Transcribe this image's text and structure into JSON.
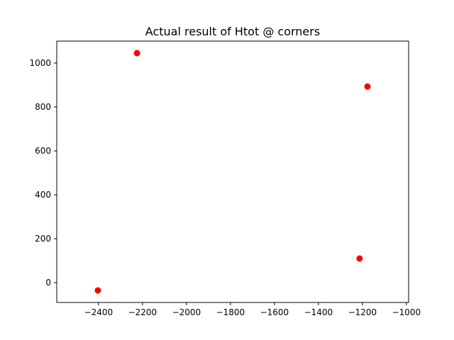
{
  "chart_data": {
    "type": "scatter",
    "title": "Actual result of Htot @ corners",
    "xlabel": "",
    "ylabel": "",
    "xlim": [
      -2590,
      -990
    ],
    "ylim": [
      -90,
      1100
    ],
    "xticks": [
      -2400,
      -2200,
      -2000,
      -1800,
      -1600,
      -1400,
      -1200,
      -1000
    ],
    "yticks": [
      0,
      200,
      400,
      600,
      800,
      1000
    ],
    "xtick_labels": [
      "−2400",
      "−2200",
      "−2000",
      "−1800",
      "−1600",
      "−1400",
      "−1200",
      "−1000"
    ],
    "ytick_labels": [
      "0",
      "200",
      "400",
      "600",
      "800",
      "1000"
    ],
    "grid": false,
    "marker_color": "#ff0000",
    "points": [
      {
        "x": -2403,
        "y": -35
      },
      {
        "x": -2225,
        "y": 1045
      },
      {
        "x": -1177,
        "y": 893
      },
      {
        "x": -1213,
        "y": 110
      }
    ]
  }
}
